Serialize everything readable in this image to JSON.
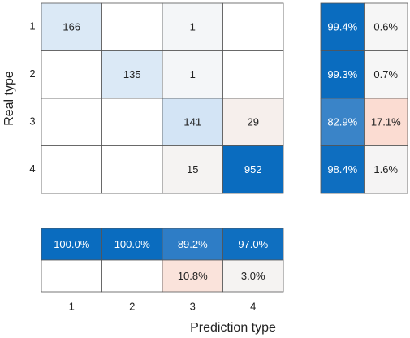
{
  "chart_data": {
    "type": "confusion_matrix",
    "x_label": "Prediction type",
    "y_label": "Real type",
    "categories": [
      "1",
      "2",
      "3",
      "4"
    ],
    "matrix": {
      "values": [
        [
          166,
          null,
          1,
          null
        ],
        [
          null,
          135,
          1,
          null
        ],
        [
          null,
          null,
          141,
          29
        ],
        [
          null,
          null,
          15,
          952
        ]
      ],
      "colors": [
        [
          "#dbe9f6",
          "#ffffff",
          "#f4f6f8",
          "#ffffff"
        ],
        [
          "#ffffff",
          "#dbe9f6",
          "#f4f6f8",
          "#ffffff"
        ],
        [
          "#ffffff",
          "#ffffff",
          "#d3e4f5",
          "#f6efec"
        ],
        [
          "#ffffff",
          "#ffffff",
          "#f5f3f2",
          "#0a6cbf"
        ]
      ]
    },
    "row_summary": {
      "values": [
        [
          99.4,
          0.6
        ],
        [
          99.3,
          0.7
        ],
        [
          82.9,
          17.1
        ],
        [
          98.4,
          1.6
        ]
      ],
      "value_labels": [
        [
          "99.4%",
          "0.6%"
        ],
        [
          "99.3%",
          "0.7%"
        ],
        [
          "82.9%",
          "17.1%"
        ],
        [
          "98.4%",
          "1.6%"
        ]
      ],
      "colors": [
        [
          "#0a6cbf",
          "#f6f6f6"
        ],
        [
          "#0a6cbf",
          "#f6f6f6"
        ],
        [
          "#3a84c8",
          "#fbdcd2"
        ],
        [
          "#0e6ec0",
          "#f5f4f4"
        ]
      ]
    },
    "column_summary": {
      "values": [
        [
          100.0,
          100.0,
          89.2,
          97.0
        ],
        [
          null,
          null,
          10.8,
          3.0
        ]
      ],
      "value_labels": [
        [
          "100.0%",
          "100.0%",
          "89.2%",
          "97.0%"
        ],
        [
          null,
          null,
          "10.8%",
          "3.0%"
        ]
      ],
      "colors": [
        [
          "#0a6cbf",
          "#0a6cbf",
          "#2e7dc6",
          "#0f6fc0"
        ],
        [
          "#ffffff",
          "#ffffff",
          "#fae3db",
          "#f5f3f2"
        ]
      ]
    }
  }
}
